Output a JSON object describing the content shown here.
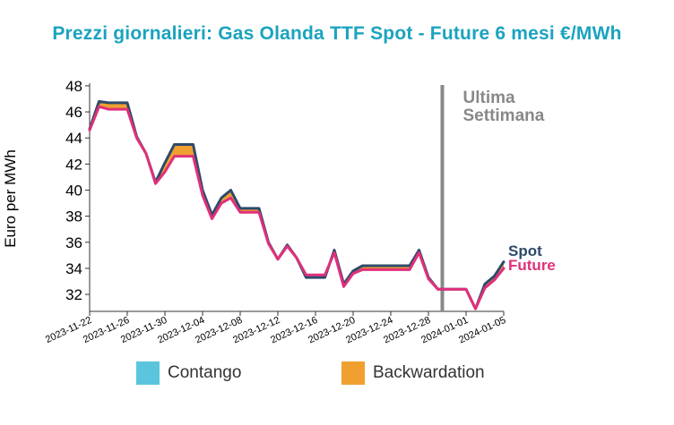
{
  "chart_data": {
    "type": "area",
    "title": "Prezzi giornalieri: Gas Olanda TTF Spot - Future 6 mesi €/MWh",
    "xlabel": "",
    "ylabel": "Euro per MWh",
    "ylim": [
      30.7,
      48.2
    ],
    "yticks": [
      32,
      34,
      36,
      38,
      40,
      42,
      44,
      46,
      48
    ],
    "xticks": [
      "2023-11-22",
      "2023-11-26",
      "2023-11-30",
      "2023-12-04",
      "2023-12-08",
      "2023-12-12",
      "2023-12-16",
      "2023-12-20",
      "2023-12-24",
      "2023-12-28",
      "2024-01-01",
      "2024-01-05"
    ],
    "x": [
      "2023-11-22",
      "2023-11-23",
      "2023-11-24",
      "2023-11-25",
      "2023-11-26",
      "2023-11-27",
      "2023-11-28",
      "2023-11-29",
      "2023-11-30",
      "2023-12-01",
      "2023-12-02",
      "2023-12-03",
      "2023-12-04",
      "2023-12-05",
      "2023-12-06",
      "2023-12-07",
      "2023-12-08",
      "2023-12-09",
      "2023-12-10",
      "2023-12-11",
      "2023-12-12",
      "2023-12-13",
      "2023-12-14",
      "2023-12-15",
      "2023-12-16",
      "2023-12-17",
      "2023-12-18",
      "2023-12-19",
      "2023-12-20",
      "2023-12-21",
      "2023-12-22",
      "2023-12-23",
      "2023-12-24",
      "2023-12-25",
      "2023-12-26",
      "2023-12-27",
      "2023-12-28",
      "2023-12-29",
      "2023-12-30",
      "2023-12-31",
      "2024-01-01",
      "2024-01-02",
      "2024-01-03",
      "2024-01-04",
      "2024-01-05"
    ],
    "series": [
      {
        "name": "Spot",
        "color": "#2e4a6b",
        "values": [
          44.7,
          46.8,
          46.7,
          46.7,
          46.7,
          44.1,
          42.8,
          40.6,
          42.1,
          43.5,
          43.5,
          43.5,
          40.0,
          38.1,
          39.4,
          40.0,
          38.6,
          38.6,
          38.6,
          36.0,
          34.7,
          35.8,
          34.8,
          33.3,
          33.3,
          33.3,
          35.4,
          32.8,
          33.8,
          34.2,
          34.2,
          34.2,
          34.2,
          34.2,
          34.2,
          35.4,
          33.3,
          32.4,
          32.4,
          32.4,
          32.4,
          30.9,
          32.8,
          33.4,
          34.5
        ]
      },
      {
        "name": "Future",
        "color": "#e0307a",
        "values": [
          44.6,
          46.4,
          46.2,
          46.2,
          46.2,
          44.0,
          42.8,
          40.5,
          41.4,
          42.6,
          42.6,
          42.6,
          39.6,
          37.8,
          39.0,
          39.4,
          38.3,
          38.3,
          38.3,
          35.9,
          34.7,
          35.7,
          34.8,
          33.5,
          33.5,
          33.5,
          35.2,
          32.6,
          33.6,
          33.9,
          33.9,
          33.9,
          33.9,
          33.9,
          33.9,
          35.2,
          33.2,
          32.4,
          32.4,
          32.4,
          32.4,
          30.9,
          32.5,
          33.1,
          34.0
        ]
      }
    ],
    "fill_legend": [
      {
        "name": "Contango",
        "color": "#5bc5dd"
      },
      {
        "name": "Backwardation",
        "color": "#f0a030"
      }
    ],
    "annotations": [
      {
        "text": [
          "Ultima",
          "Settimana"
        ],
        "x": "2023-12-29"
      }
    ],
    "grid": false
  }
}
